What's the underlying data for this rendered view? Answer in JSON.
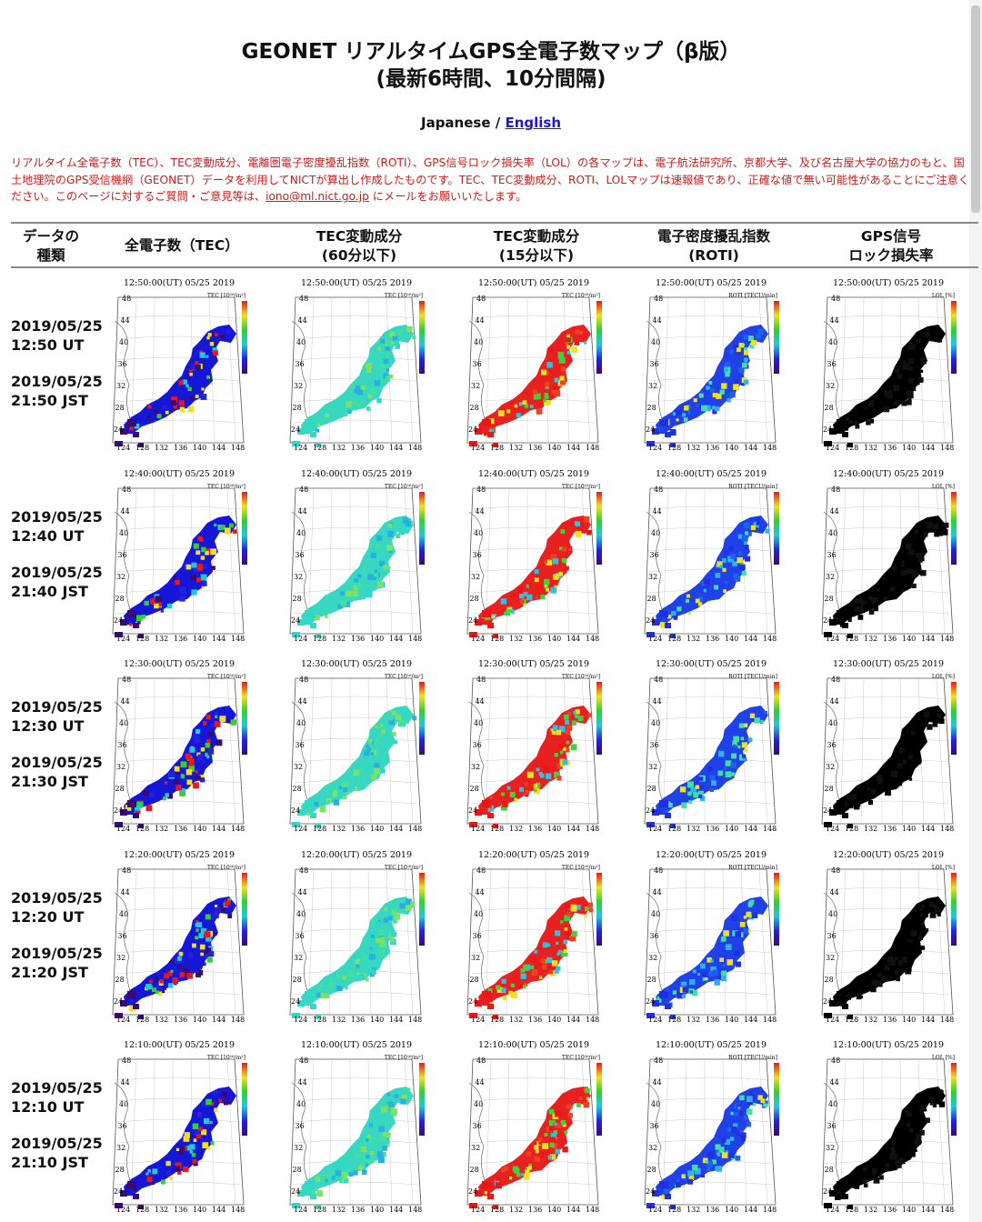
{
  "title_line1": "GEONET リアルタイムGPS全電子数マップ（β版）",
  "title_line2": "(最新6時間、10分間隔)",
  "language": {
    "japanese": "Japanese",
    "separator": " / ",
    "english": "English"
  },
  "notice": {
    "text_before_email": "リアルタイム全電子数（TEC）、TEC変動成分、電離圏電子密度擾乱指数（ROTI）、GPS信号ロック損失率（LOL）の各マップは、電子航法研究所、京都大学、及び名古屋大学の協力のもと、国土地理院のGPS受信機網（GEONET）データを利用してNICTが算出し作成したものです。TEC、TEC変動成分、ROTI、LOLマップは速報値であり、正確な値で無い可能性があることにご注意ください。このページに対するご質問・ご意見等は、",
    "email": "iono@ml.nict.go.jp",
    "text_after_email": " にメールをお願いいたします。"
  },
  "table_headers": {
    "data_type": [
      "データの",
      "種類"
    ],
    "tec": [
      "全電子数（TEC）"
    ],
    "tec60": [
      "TEC変動成分",
      "(60分以下)"
    ],
    "tec15": [
      "TEC変動成分",
      "(15分以下)"
    ],
    "roti": [
      "電子密度擾乱指数",
      "(ROTI)"
    ],
    "lol": [
      "GPS信号",
      "ロック損失率"
    ]
  },
  "rows": [
    {
      "ut_date": "2019/05/25",
      "ut_time": "12:50 UT",
      "jst_date": "2019/05/25",
      "jst_time": "21:50 JST",
      "map_stamp": "12:50:00(UT)  05/25 2019"
    },
    {
      "ut_date": "2019/05/25",
      "ut_time": "12:40 UT",
      "jst_date": "2019/05/25",
      "jst_time": "21:40 JST",
      "map_stamp": "12:40:00(UT)  05/25 2019"
    },
    {
      "ut_date": "2019/05/25",
      "ut_time": "12:30 UT",
      "jst_date": "2019/05/25",
      "jst_time": "21:30 JST",
      "map_stamp": "12:30:00(UT)  05/25 2019"
    },
    {
      "ut_date": "2019/05/25",
      "ut_time": "12:20 UT",
      "jst_date": "2019/05/25",
      "jst_time": "21:20 JST",
      "map_stamp": "12:20:00(UT)  05/25 2019"
    },
    {
      "ut_date": "2019/05/25",
      "ut_time": "12:10 UT",
      "jst_date": "2019/05/25",
      "jst_time": "21:10 JST",
      "map_stamp": "12:10:00(UT)  05/25 2019"
    }
  ],
  "map_axes": {
    "lat_ticks": [
      "48",
      "44",
      "40",
      "36",
      "32",
      "28",
      "24"
    ],
    "lon_ticks": [
      "124",
      "128",
      "132",
      "136",
      "140",
      "144",
      "148"
    ]
  },
  "map_columns": [
    {
      "key": "tec",
      "legend_label": "TEC [10¹⁶/m²]",
      "palette": [
        "#3a0a70",
        "#2222dd",
        "#20c8e0",
        "#30d030",
        "#f0e020",
        "#e81818"
      ],
      "land": "#1616d8"
    },
    {
      "key": "tec60",
      "legend_label": "TEC [10¹⁶/m²]",
      "palette": [
        "#30d8c8",
        "#40e0a0",
        "#80e060",
        "#28b0e0"
      ],
      "land": "#38d8c0"
    },
    {
      "key": "tec15",
      "legend_label": "TEC [10¹⁶/m²]",
      "palette": [
        "#e81818",
        "#f04020",
        "#f0e020",
        "#40d040",
        "#30c0e0"
      ],
      "land": "#e82020"
    },
    {
      "key": "roti",
      "legend_label": "ROTI [TECU/min]",
      "palette": [
        "#2030e0",
        "#1e60f0",
        "#30b0f0",
        "#40e0a0",
        "#f0e020"
      ],
      "land": "#2040e8"
    },
    {
      "key": "lol",
      "legend_label": "LOL [%]",
      "palette": [
        "#000000",
        "#111111"
      ],
      "land": "#000000"
    }
  ]
}
